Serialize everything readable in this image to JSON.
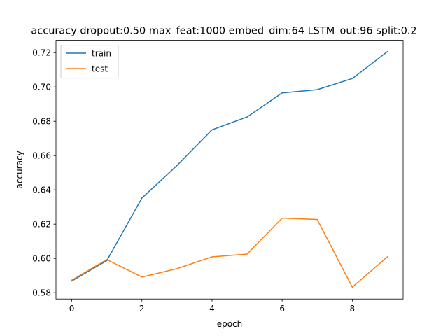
{
  "chart_data": {
    "type": "line",
    "title": "accuracy dropout:0.50 max_feat:1000 embed_dim:64 LSTM_out:96 split:0.2",
    "xlabel": "epoch",
    "ylabel": "accuracy",
    "x": [
      0,
      1,
      2,
      3,
      4,
      5,
      6,
      7,
      8,
      9
    ],
    "xlim": [
      -0.45,
      9.45
    ],
    "ylim": [
      0.5763,
      0.7272
    ],
    "xticks": [
      0,
      2,
      4,
      6,
      8
    ],
    "yticks": [
      0.58,
      0.6,
      0.62,
      0.64,
      0.66,
      0.68,
      0.7,
      0.72
    ],
    "xtick_labels": [
      "0",
      "2",
      "4",
      "6",
      "8"
    ],
    "ytick_labels": [
      "0.58",
      "0.60",
      "0.62",
      "0.64",
      "0.66",
      "0.68",
      "0.70",
      "0.72"
    ],
    "grid": false,
    "legend_position": "top-left",
    "series": [
      {
        "name": "train",
        "color": "#1f77b4",
        "values": [
          0.5868,
          0.5987,
          0.6352,
          0.6542,
          0.675,
          0.6825,
          0.6965,
          0.6984,
          0.7049,
          0.7206
        ]
      },
      {
        "name": "test",
        "color": "#ff7f0e",
        "values": [
          0.5873,
          0.5993,
          0.5891,
          0.594,
          0.6009,
          0.6025,
          0.6235,
          0.6227,
          0.5832,
          0.6009
        ]
      }
    ]
  }
}
